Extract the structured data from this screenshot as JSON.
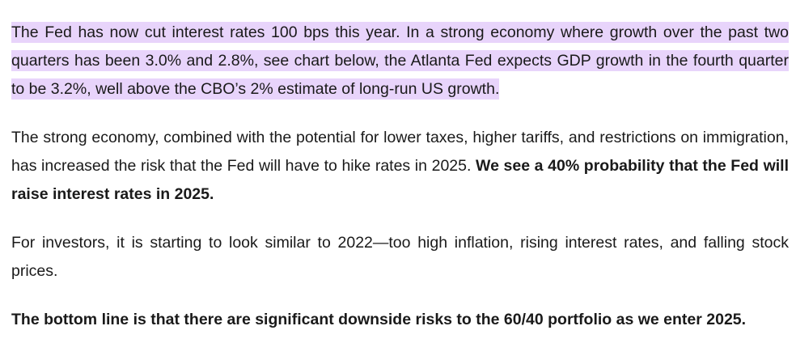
{
  "article": {
    "paragraph_1": {
      "highlighted_text": "The Fed has now cut interest rates 100 bps this year. In a strong economy where growth over the past two quarters has been 3.0% and 2.8%, see chart below, the Atlanta Fed expects GDP growth in the fourth quarter to be 3.2%, well above the CBO’s 2% estimate of long-run US growth.",
      "highlight_color": "#e8d4fb"
    },
    "paragraph_2": {
      "text": "The strong economy, combined with the potential for lower taxes, higher tariffs, and restrictions on immigration, has increased the risk that the Fed will have to hike rates in 2025. ",
      "bold_text": "We see a 40% probability that the Fed will raise interest rates in 2025."
    },
    "paragraph_3": {
      "text": "For investors, it is starting to look similar to 2022—too high inflation, rising interest rates, and falling stock prices."
    },
    "paragraph_4": {
      "bold_text": "The bottom line is that there are significant downside risks to the 60/40 portfolio as we enter 2025."
    }
  }
}
